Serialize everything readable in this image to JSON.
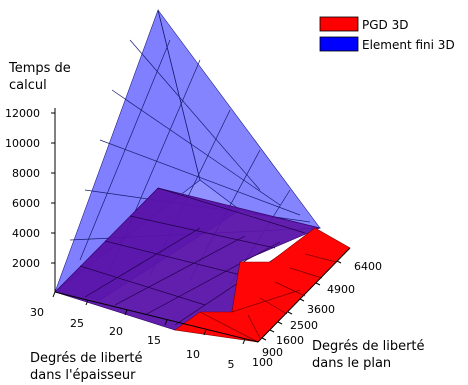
{
  "chart_data": {
    "type": "surface",
    "title": "",
    "zlabel_lines": [
      "Temps de",
      "calcul"
    ],
    "xlabel_lines": [
      "Degrés de liberté",
      "dans l'épaisseur"
    ],
    "ylabel_lines": [
      "Degrés de liberté",
      "dans le plan"
    ],
    "x_ticks": [
      "30",
      "25",
      "20",
      "15",
      "10",
      "5"
    ],
    "y_ticks": [
      "100",
      "900",
      "1600",
      "2500",
      "3600",
      "4900",
      "6400"
    ],
    "z_ticks": [
      "2000",
      "4000",
      "6000",
      "8000",
      "10000",
      "12000"
    ],
    "legend": {
      "placement": "top-right",
      "entries": [
        {
          "name": "PGD 3D",
          "color": "#ff0000"
        },
        {
          "name": "Element fini 3D",
          "color": "#0000ff"
        }
      ]
    },
    "zlim": [
      0,
      14000
    ],
    "series": [
      {
        "name": "PGD 3D",
        "color": "#ff0000",
        "approx_max_value": 4000
      },
      {
        "name": "Element fini 3D",
        "color": "#0000ff",
        "approx_max_value": 14000
      }
    ]
  }
}
